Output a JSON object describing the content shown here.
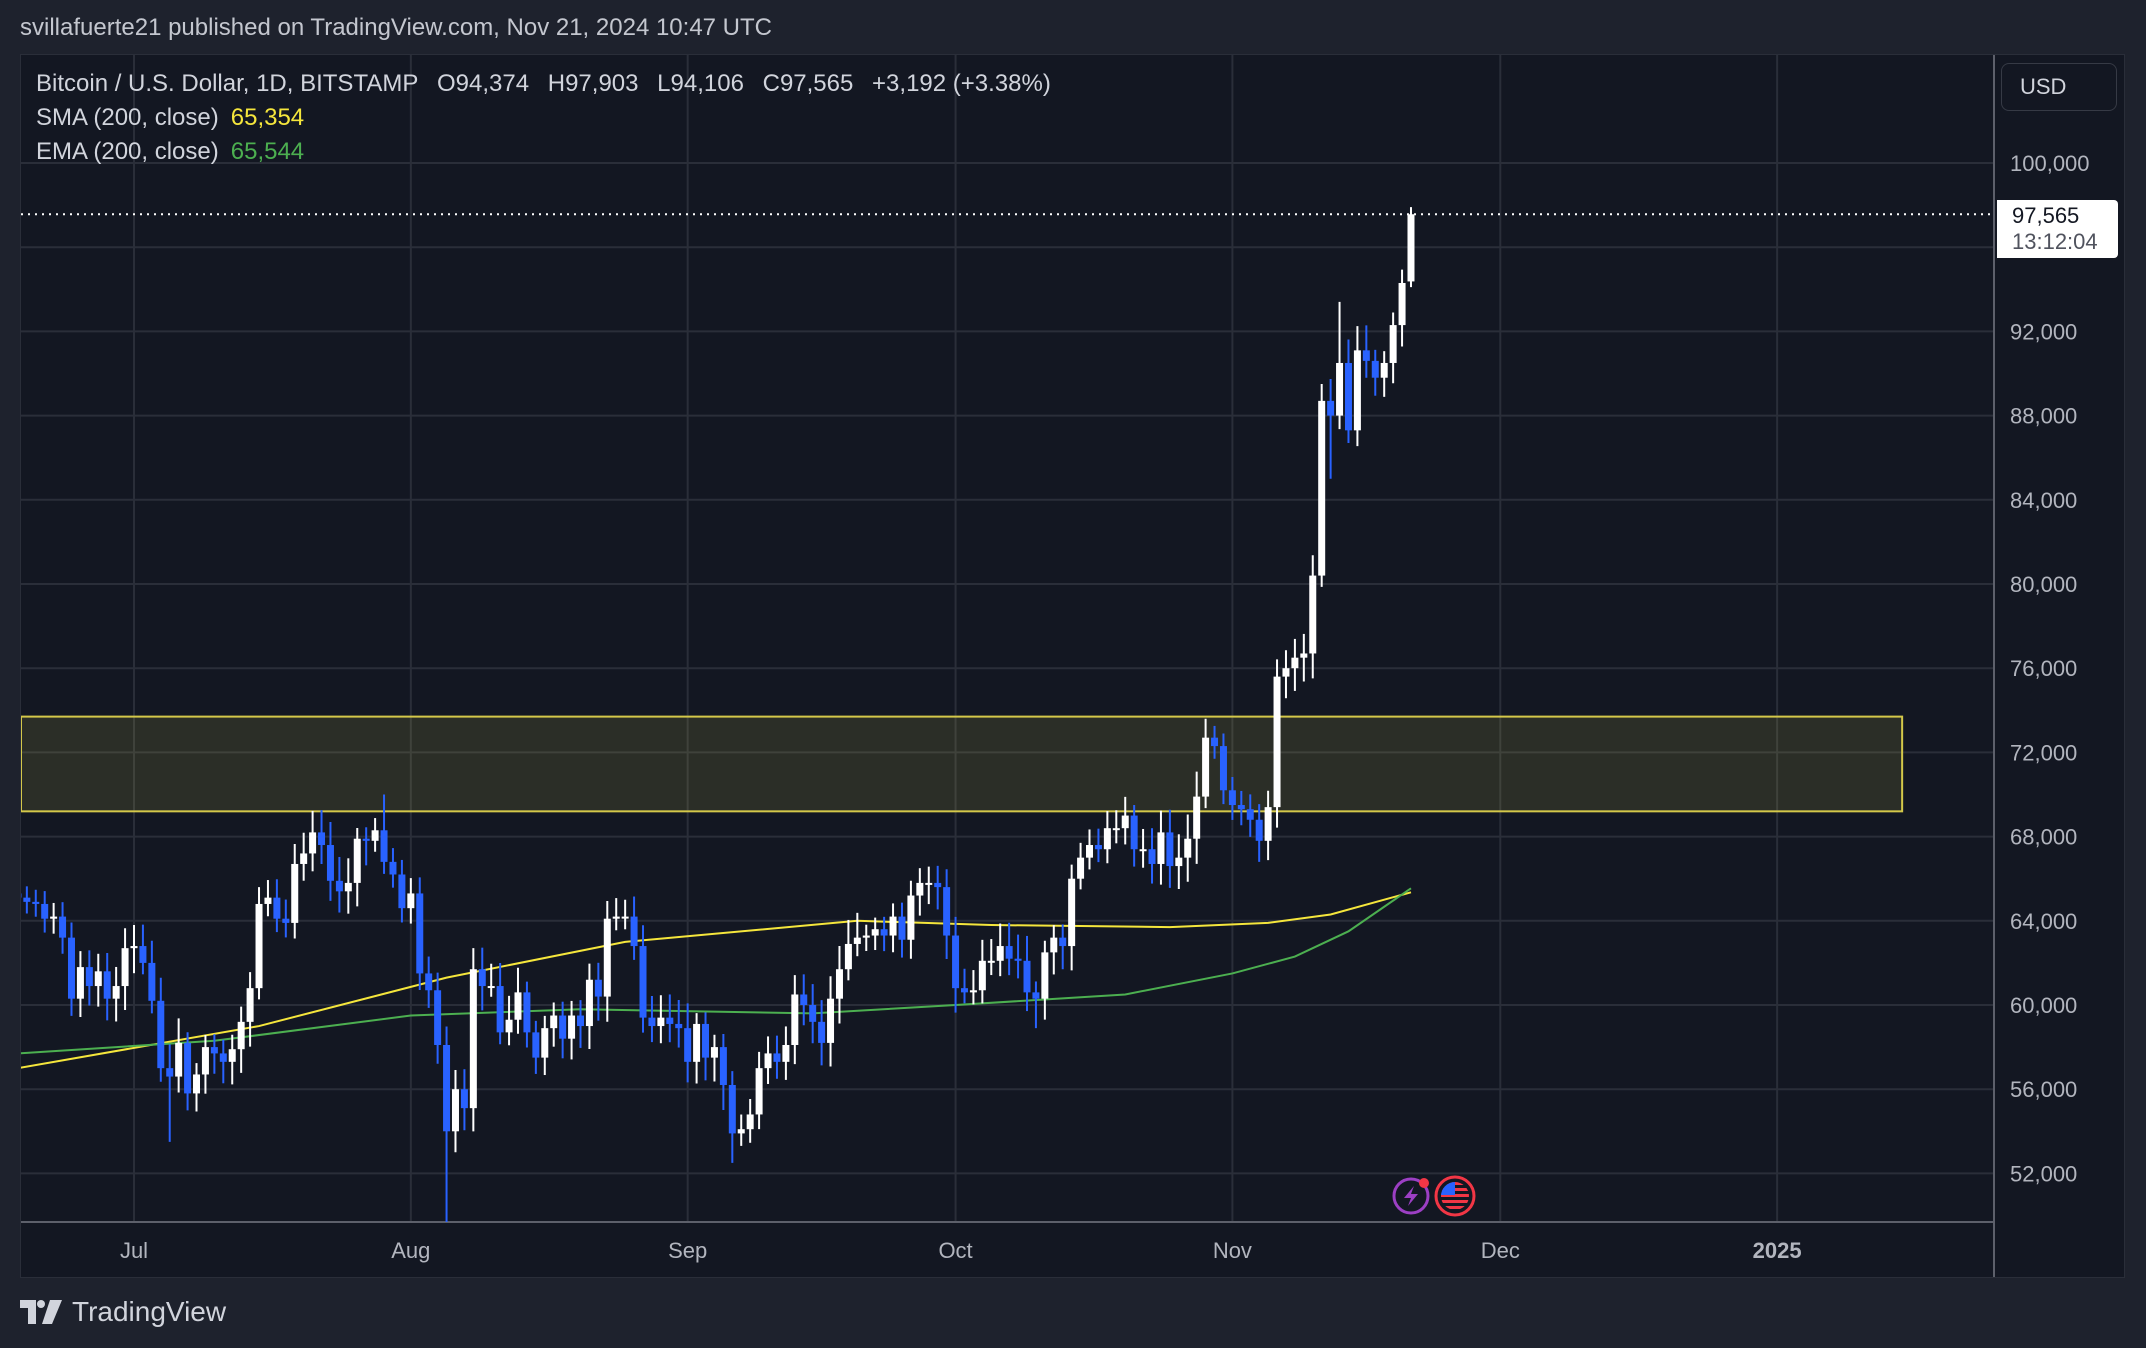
{
  "header": {
    "published": "svillafuerte21 published on TradingView.com, Nov 21, 2024 10:47 UTC"
  },
  "legend": {
    "symbol": "Bitcoin / U.S. Dollar, 1D, BITSTAMP",
    "open": "O94,374",
    "high": "H97,903",
    "low": "L94,106",
    "close": "C97,565",
    "change": "+3,192 (+3.38%)",
    "sma_label": "SMA (200, close)",
    "sma_value": "65,354",
    "ema_label": "EMA (200, close)",
    "ema_value": "65,544"
  },
  "currency": "USD",
  "last_price": {
    "value": "97,565",
    "countdown": "13:12:04"
  },
  "footer": {
    "brand": "TradingView"
  },
  "icons": [
    "lightning-icon",
    "us-flag-icon",
    "tradingview-logo-icon"
  ],
  "colors": {
    "up": "#ffffff",
    "down": "#2962ff",
    "sma": "#f5e63c",
    "ema": "#4caf50",
    "zone": "#d4c84a",
    "background": "#131722"
  },
  "chart_data": {
    "type": "candlestick",
    "start_date": "2024-06-18",
    "last_open": 94374,
    "last_high": 97903,
    "last_low": 94106,
    "first_open": 65300,
    "close": [
      65100,
      64900,
      64800,
      64100,
      64200,
      63200,
      60300,
      61800,
      60900,
      61600,
      60300,
      60900,
      62700,
      62800,
      62000,
      60200,
      57000,
      56600,
      58200,
      55800,
      56700,
      58000,
      57700,
      57300,
      57900,
      59200,
      60800,
      64800,
      65100,
      64100,
      63900,
      66700,
      67200,
      68200,
      67600,
      65900,
      65400,
      65800,
      67900,
      67800,
      68300,
      66800,
      66200,
      64600,
      65300,
      61500,
      60700,
      58100,
      54000,
      56000,
      55100,
      61700,
      60900,
      60900,
      58700,
      59300,
      60600,
      58700,
      57500,
      58900,
      59500,
      58400,
      59500,
      59000,
      61200,
      60400,
      64100,
      64200,
      64200,
      62800,
      59400,
      59000,
      59400,
      59100,
      58900,
      57300,
      59100,
      57500,
      58000,
      56200,
      53900,
      54100,
      54800,
      57000,
      57700,
      57300,
      58100,
      60500,
      60000,
      59200,
      58200,
      60300,
      61700,
      62900,
      63200,
      63300,
      63600,
      63300,
      64200,
      63100,
      65200,
      65800,
      65800,
      65600,
      63300,
      60800,
      60600,
      60700,
      62100,
      62100,
      62800,
      62200,
      62100,
      60600,
      60300,
      62500,
      63200,
      62800,
      66000,
      67000,
      67600,
      67400,
      68400,
      68400,
      69000,
      67400,
      67400,
      66700,
      68200,
      66600,
      67000,
      67900,
      69900,
      72700,
      72300,
      70200,
      69500,
      69300,
      68800,
      67800,
      69400,
      75600,
      76000,
      76500,
      76700,
      80400,
      88700,
      88000,
      90500,
      87300,
      91100,
      90600,
      89800,
      90500,
      92300,
      94300,
      97565
    ],
    "notable_highs": {
      "2024-06-18": 66500,
      "2024-07-01": 63800,
      "2024-07-29": 70000,
      "2024-08-08": 62700,
      "2024-08-25": 65000,
      "2024-09-27": 66500,
      "2024-10-21": 69500,
      "2024-10-29": 73600,
      "2024-11-11": 89500,
      "2024-11-13": 93400,
      "2024-11-21": 97903
    },
    "notable_lows": {
      "2024-07-05": 53500,
      "2024-08-05": 49500,
      "2024-09-06": 52500,
      "2024-10-10": 58900,
      "2024-11-04": 66800,
      "2024-11-12": 85000,
      "2024-11-14": 86700
    },
    "sma_200": [
      [
        "2024-06-18",
        57000
      ],
      [
        "2024-07-15",
        59000
      ],
      [
        "2024-08-05",
        61300
      ],
      [
        "2024-08-25",
        63000
      ],
      [
        "2024-09-20",
        64000
      ],
      [
        "2024-10-05",
        63800
      ],
      [
        "2024-10-25",
        63700
      ],
      [
        "2024-11-05",
        63900
      ],
      [
        "2024-11-12",
        64300
      ],
      [
        "2024-11-21",
        65354
      ]
    ],
    "ema_200": [
      [
        "2024-06-18",
        57700
      ],
      [
        "2024-07-10",
        58300
      ],
      [
        "2024-08-01",
        59500
      ],
      [
        "2024-08-20",
        59800
      ],
      [
        "2024-09-15",
        59600
      ],
      [
        "2024-10-01",
        60000
      ],
      [
        "2024-10-20",
        60500
      ],
      [
        "2024-11-01",
        61500
      ],
      [
        "2024-11-08",
        62300
      ],
      [
        "2024-11-14",
        63500
      ],
      [
        "2024-11-21",
        65544
      ]
    ],
    "zone": {
      "from": "2024-06-18",
      "to": "2025-01-15",
      "low": 69200,
      "high": 73700
    },
    "y_ticks": [
      52000,
      56000,
      60000,
      64000,
      68000,
      72000,
      76000,
      80000,
      84000,
      88000,
      92000,
      96000,
      100000
    ],
    "y_tick_labels": [
      "52,000",
      "56,000",
      "60,000",
      "64,000",
      "68,000",
      "72,000",
      "76,000",
      "80,000",
      "84,000",
      "88,000",
      "92,000",
      "",
      "100,000"
    ],
    "x_ticks": [
      [
        "2024-07-01",
        "Jul"
      ],
      [
        "2024-08-01",
        "Aug"
      ],
      [
        "2024-09-01",
        "Sep"
      ],
      [
        "2024-10-01",
        "Oct"
      ],
      [
        "2024-11-01",
        "Nov"
      ],
      [
        "2024-12-01",
        "Dec"
      ],
      [
        "2025-01-01",
        "2025"
      ]
    ],
    "grid": true
  }
}
